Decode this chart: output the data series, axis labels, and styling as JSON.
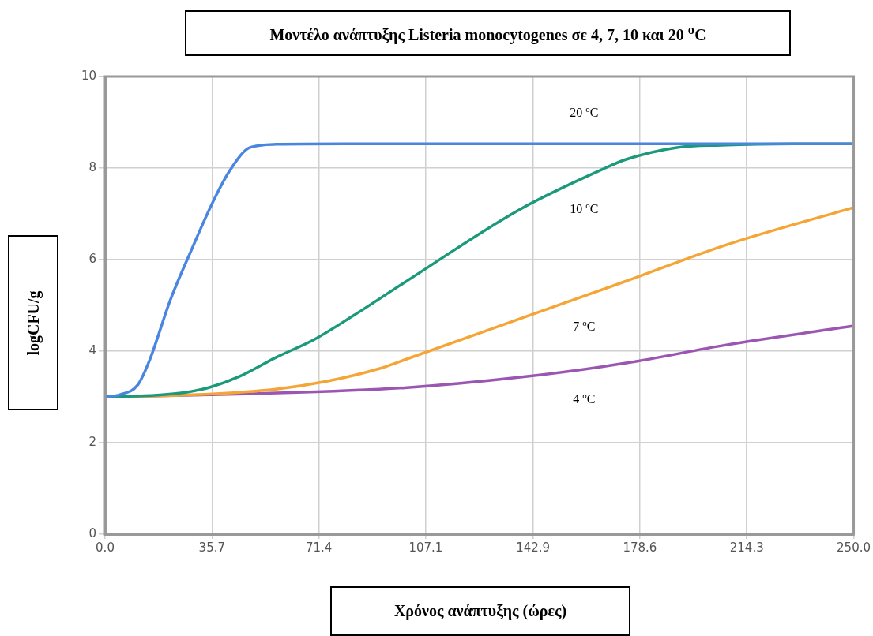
{
  "chart_data": {
    "type": "line",
    "title": "Μοντέλο ανάπτυξης Listeria monocytogenes σε 4, 7, 10 και 20 $^{o}$C",
    "xlabel": "Χρόνος ανάπτυξης (ώρες)",
    "ylabel": "logCFU/g",
    "xlim": [
      0,
      250
    ],
    "ylim": [
      0,
      10
    ],
    "xticks": [
      {
        "value": 0,
        "label": "0.0"
      },
      35.7,
      71.4,
      107.1,
      142.9,
      178.6,
      214.3,
      {
        "value": 250,
        "label": "250.0"
      }
    ],
    "yticks": [
      0,
      2,
      4,
      6,
      8,
      10
    ],
    "grid": true,
    "legend": false,
    "marker": "none",
    "line_style": "solid",
    "series": [
      {
        "name": "20 $^{o}$C",
        "color": "#4a86e0",
        "x": [
          0,
          5,
          10.9,
          14.8,
          21.8,
          28.5,
          35.5,
          41.5,
          48.4,
          57,
          80,
          250
        ],
        "values": [
          3.0,
          3.05,
          3.26,
          3.79,
          5.12,
          6.16,
          7.19,
          7.93,
          8.45,
          8.52,
          8.53,
          8.53
        ]
      },
      {
        "name": "10 $^{o}$C",
        "color": "#1a9a7a",
        "x": [
          0,
          15,
          27,
          35.5,
          45,
          57,
          70,
          83,
          100,
          138.6,
          167,
          174,
          191,
          205.7,
          230,
          250
        ],
        "values": [
          3.0,
          3.03,
          3.1,
          3.22,
          3.45,
          3.86,
          4.26,
          4.78,
          5.5,
          7.1,
          8.0,
          8.19,
          8.45,
          8.5,
          8.53,
          8.53
        ]
      },
      {
        "name": "7 $^{o}$C",
        "color": "#f5a535",
        "x": [
          0,
          31,
          57,
          74,
          91.7,
          100,
          138.6,
          174,
          207.8,
          250
        ],
        "values": [
          3.0,
          3.05,
          3.17,
          3.34,
          3.62,
          3.81,
          4.71,
          5.53,
          6.33,
          7.14
        ]
      },
      {
        "name": "4 $^{o}$C",
        "color": "#9b55b3",
        "x": [
          0,
          50,
          100,
          138.6,
          174,
          207.8,
          250
        ],
        "values": [
          3.0,
          3.07,
          3.2,
          3.43,
          3.74,
          4.14,
          4.55
        ]
      }
    ]
  }
}
